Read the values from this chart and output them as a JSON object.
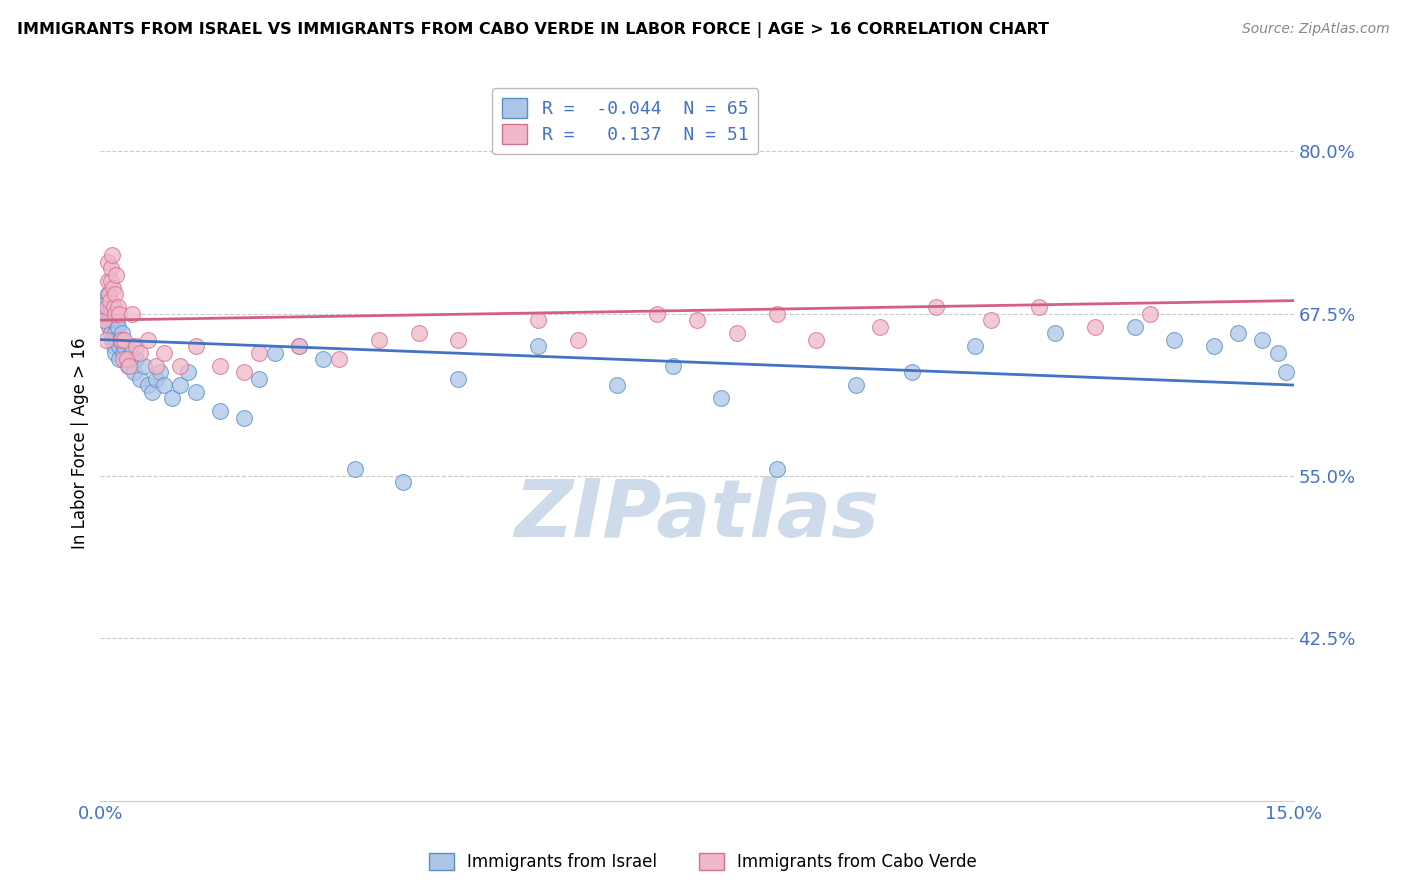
{
  "title": "IMMIGRANTS FROM ISRAEL VS IMMIGRANTS FROM CABO VERDE IN LABOR FORCE | AGE > 16 CORRELATION CHART",
  "source": "Source: ZipAtlas.com",
  "ylabel": "In Labor Force | Age > 16",
  "xlim": [
    0.0,
    15.0
  ],
  "ylim": [
    30.0,
    85.0
  ],
  "yticks": [
    42.5,
    55.0,
    67.5,
    80.0
  ],
  "ytick_labels": [
    "42.5%",
    "55.0%",
    "67.5%",
    "80.0%"
  ],
  "xtick_labels": [
    "0.0%",
    "15.0%"
  ],
  "israel_R": -0.044,
  "israel_N": 65,
  "caboverde_R": 0.137,
  "caboverde_N": 51,
  "israel_color": "#adc6e8",
  "caboverde_color": "#f0b8c8",
  "israel_edge_color": "#5b8ec4",
  "caboverde_edge_color": "#d47090",
  "israel_line_color": "#4472c4",
  "caboverde_line_color": "#d46080",
  "grid_color": "#cccccc",
  "background_color": "#ffffff",
  "watermark": "ZIPatlas",
  "watermark_color": "#c8d8e8",
  "legend_label_israel": "Immigrants from Israel",
  "legend_label_caboverde": "Immigrants from Cabo Verde",
  "israel_x": [
    0.05,
    0.07,
    0.08,
    0.09,
    0.1,
    0.11,
    0.12,
    0.13,
    0.14,
    0.15,
    0.16,
    0.17,
    0.18,
    0.19,
    0.2,
    0.21,
    0.22,
    0.23,
    0.24,
    0.25,
    0.27,
    0.28,
    0.3,
    0.32,
    0.35,
    0.38,
    0.4,
    0.42,
    0.45,
    0.5,
    0.55,
    0.6,
    0.65,
    0.7,
    0.75,
    0.8,
    0.9,
    1.0,
    1.1,
    1.2,
    1.5,
    1.8,
    2.0,
    2.2,
    2.5,
    2.8,
    3.2,
    3.8,
    4.5,
    5.5,
    6.5,
    7.2,
    7.8,
    8.5,
    9.5,
    10.2,
    11.0,
    12.0,
    13.0,
    13.5,
    14.0,
    14.3,
    14.6,
    14.8,
    14.9
  ],
  "israel_y": [
    68.0,
    67.5,
    68.5,
    69.0,
    67.0,
    66.5,
    67.5,
    68.0,
    66.0,
    65.5,
    67.0,
    65.0,
    64.5,
    66.0,
    65.5,
    67.0,
    66.5,
    65.0,
    64.0,
    65.5,
    66.0,
    64.5,
    65.0,
    64.0,
    63.5,
    64.5,
    65.0,
    63.0,
    64.0,
    62.5,
    63.5,
    62.0,
    61.5,
    62.5,
    63.0,
    62.0,
    61.0,
    62.0,
    63.0,
    61.5,
    60.0,
    59.5,
    62.5,
    64.5,
    65.0,
    64.0,
    55.5,
    54.5,
    62.5,
    65.0,
    62.0,
    63.5,
    61.0,
    55.5,
    62.0,
    63.0,
    65.0,
    66.0,
    66.5,
    65.5,
    65.0,
    66.0,
    65.5,
    64.5,
    63.0
  ],
  "caboverde_x": [
    0.05,
    0.07,
    0.08,
    0.09,
    0.1,
    0.11,
    0.12,
    0.13,
    0.14,
    0.15,
    0.16,
    0.17,
    0.18,
    0.19,
    0.2,
    0.22,
    0.24,
    0.26,
    0.28,
    0.3,
    0.33,
    0.36,
    0.4,
    0.45,
    0.5,
    0.6,
    0.7,
    0.8,
    1.0,
    1.2,
    1.5,
    1.8,
    2.0,
    2.5,
    3.0,
    3.5,
    4.0,
    4.5,
    5.5,
    6.0,
    7.0,
    7.5,
    8.0,
    8.5,
    9.0,
    9.8,
    10.5,
    11.2,
    11.8,
    12.5,
    13.2
  ],
  "caboverde_y": [
    67.0,
    65.5,
    68.0,
    70.0,
    71.5,
    69.0,
    68.5,
    70.0,
    71.0,
    72.0,
    69.5,
    68.0,
    67.5,
    69.0,
    70.5,
    68.0,
    67.5,
    65.5,
    64.0,
    65.5,
    64.0,
    63.5,
    67.5,
    65.0,
    64.5,
    65.5,
    63.5,
    64.5,
    63.5,
    65.0,
    63.5,
    63.0,
    64.5,
    65.0,
    64.0,
    65.5,
    66.0,
    65.5,
    67.0,
    65.5,
    67.5,
    67.0,
    66.0,
    67.5,
    65.5,
    66.5,
    68.0,
    67.0,
    68.0,
    66.5,
    67.5
  ]
}
